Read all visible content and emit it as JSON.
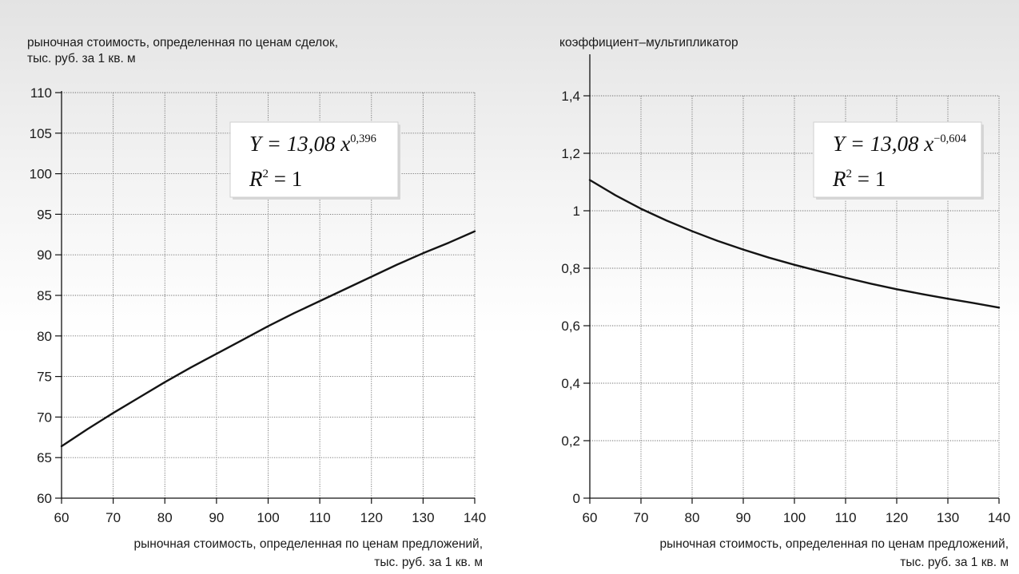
{
  "chart_data": [
    {
      "type": "line",
      "ylabel_lines": [
        "рыночная стоимость, определенная по ценам сделок,",
        "тыс. руб. за 1 кв. м"
      ],
      "xlabel_lines": [
        "рыночная стоимость, определенная по ценам предложений,",
        "тыс. руб. за 1 кв. м"
      ],
      "xlim": [
        60,
        140
      ],
      "ylim": [
        60,
        110
      ],
      "x_ticks": [
        60,
        70,
        80,
        90,
        100,
        110,
        120,
        130,
        140
      ],
      "x_tick_labels": [
        "60",
        "70",
        "80",
        "90",
        "100",
        "110",
        "120",
        "130",
        "140"
      ],
      "y_ticks": [
        60,
        65,
        70,
        75,
        80,
        85,
        90,
        95,
        100,
        105,
        110
      ],
      "y_tick_labels": [
        "60",
        "65",
        "70",
        "75",
        "80",
        "85",
        "90",
        "95",
        "100",
        "105",
        "110"
      ],
      "grid": true,
      "series": [
        {
          "model": {
            "a": 13.08,
            "b": 0.396
          },
          "x": [
            60,
            65,
            70,
            75,
            80,
            85,
            90,
            95,
            100,
            105,
            110,
            115,
            120,
            125,
            130,
            135,
            140
          ],
          "y": [
            66.4,
            68.5,
            70.5,
            72.4,
            74.3,
            76.1,
            77.8,
            79.5,
            81.2,
            82.8,
            84.3,
            85.8,
            87.3,
            88.8,
            90.2,
            91.5,
            92.9
          ]
        }
      ],
      "annotation": {
        "equation_prefix": "Y = 13,08 x",
        "equation_exponent": "0,396",
        "r2_label": "R",
        "r2_power": "2",
        "r2_value": " = 1"
      }
    },
    {
      "type": "line",
      "ylabel_lines": [
        "коэффициент–мультипликатор"
      ],
      "xlabel_lines": [
        "рыночная стоимость, определенная по ценам предложений,",
        "тыс. руб. за 1 кв. м"
      ],
      "xlim": [
        60,
        140
      ],
      "ylim": [
        0,
        1.4
      ],
      "x_ticks": [
        60,
        70,
        80,
        90,
        100,
        110,
        120,
        130,
        140
      ],
      "x_tick_labels": [
        "60",
        "70",
        "80",
        "90",
        "100",
        "110",
        "120",
        "130",
        "140"
      ],
      "y_ticks": [
        0,
        0.2,
        0.4,
        0.6,
        0.8,
        1.0,
        1.2,
        1.4
      ],
      "y_tick_labels": [
        "0",
        "0,2",
        "0,4",
        "0,6",
        "0,8",
        "1",
        "1,2",
        "1,4"
      ],
      "grid": true,
      "series": [
        {
          "model": {
            "a": 13.08,
            "b": -0.604
          },
          "x": [
            60,
            65,
            70,
            75,
            80,
            85,
            90,
            95,
            100,
            105,
            110,
            115,
            120,
            125,
            130,
            135,
            140
          ],
          "y": [
            1.107,
            1.054,
            1.007,
            0.966,
            0.929,
            0.895,
            0.865,
            0.837,
            0.812,
            0.789,
            0.767,
            0.746,
            0.727,
            0.71,
            0.694,
            0.679,
            0.663
          ]
        }
      ],
      "annotation": {
        "equation_prefix": "Y = 13,08 x",
        "equation_exponent": "−0,604",
        "r2_label": "R",
        "r2_power": "2",
        "r2_value": " = 1"
      }
    }
  ]
}
